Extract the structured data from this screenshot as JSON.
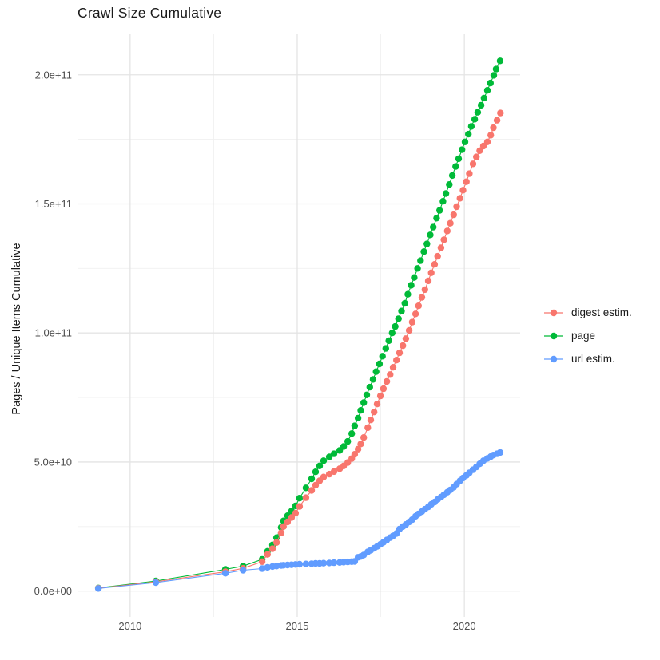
{
  "title": "Crawl Size Cumulative",
  "axes": {
    "x": {
      "tick_labels": [
        "2010",
        "2015",
        "2020"
      ],
      "tick_values": [
        2010,
        2015,
        2020
      ],
      "minor_ticks": [
        2012.5,
        2017.5
      ],
      "range": [
        2008.45,
        2021.67
      ]
    },
    "y": {
      "title": "Pages / Unique Items Cumulative",
      "tick_labels": [
        "0.0e+00",
        "5.0e+10",
        "1.0e+11",
        "1.5e+11",
        "2.0e+11"
      ],
      "tick_values": [
        0,
        50000000000.0,
        100000000000.0,
        150000000000.0,
        200000000000.0
      ],
      "minor_ticks": [
        25000000000.0,
        75000000000.0,
        125000000000.0,
        175000000000.0
      ],
      "range": [
        -10000000000.0,
        216000000000.0
      ]
    }
  },
  "legend": {
    "position": "right",
    "items": [
      {
        "label": "digest estim.",
        "color": "#F8766D"
      },
      {
        "label": "page",
        "color": "#00BA38"
      },
      {
        "label": "url estim.",
        "color": "#619CFF"
      }
    ]
  },
  "style": {
    "grid_major_color": "#e4e4e4",
    "grid_minor_color": "#f0f0f0",
    "tick_label_color": "#4d4d4d",
    "text_color": "#1a1a1a",
    "background": "#ffffff"
  },
  "chart_data": {
    "type": "line",
    "title": "Crawl Size Cumulative",
    "xlabel": "",
    "ylabel": "Pages / Unique Items Cumulative",
    "xlim": [
      2008.45,
      2021.67
    ],
    "ylim": [
      -10000000000.0,
      216000000000.0
    ],
    "grid": true,
    "legend_position": "right",
    "marker": "point",
    "draw_order": [
      1,
      0,
      2
    ],
    "series": [
      {
        "name": "digest estim.",
        "color": "#F8766D",
        "points": [
          [
            2009.05,
            1100000000.0
          ],
          [
            2010.77,
            3600000000.0
          ],
          [
            2012.85,
            7500000000.0
          ],
          [
            2013.38,
            8800000000.0
          ],
          [
            2013.95,
            11400000000.0
          ],
          [
            2014.11,
            14200000000.0
          ],
          [
            2014.26,
            16400000000.0
          ],
          [
            2014.38,
            18800000000.0
          ],
          [
            2014.52,
            22600000000.0
          ],
          [
            2014.59,
            25000000000.0
          ],
          [
            2014.71,
            26800000000.0
          ],
          [
            2014.83,
            28500000000.0
          ],
          [
            2014.95,
            30200000000.0
          ],
          [
            2015.07,
            32800000000.0
          ],
          [
            2015.26,
            36200000000.0
          ],
          [
            2015.43,
            39000000000.0
          ],
          [
            2015.55,
            41000000000.0
          ],
          [
            2015.67,
            42700000000.0
          ],
          [
            2015.79,
            44200000000.0
          ],
          [
            2015.96,
            45300000000.0
          ],
          [
            2016.1,
            46300000000.0
          ],
          [
            2016.27,
            47400000000.0
          ],
          [
            2016.39,
            48500000000.0
          ],
          [
            2016.51,
            49800000000.0
          ],
          [
            2016.63,
            51300000000.0
          ],
          [
            2016.72,
            53000000000.0
          ],
          [
            2016.82,
            55000000000.0
          ],
          [
            2016.9,
            57000000000.0
          ],
          [
            2016.99,
            59500000000.0
          ],
          [
            2017.11,
            63300000000.0
          ],
          [
            2017.2,
            66300000000.0
          ],
          [
            2017.3,
            69400000000.0
          ],
          [
            2017.39,
            72500000000.0
          ],
          [
            2017.49,
            75600000000.0
          ],
          [
            2017.58,
            78400000000.0
          ],
          [
            2017.68,
            81200000000.0
          ],
          [
            2017.78,
            83900000000.0
          ],
          [
            2017.87,
            86700000000.0
          ],
          [
            2017.97,
            89500000000.0
          ],
          [
            2018.06,
            92300000000.0
          ],
          [
            2018.16,
            95100000000.0
          ],
          [
            2018.25,
            97800000000.0
          ],
          [
            2018.35,
            101000000000.0
          ],
          [
            2018.44,
            104200000000.0
          ],
          [
            2018.54,
            107400000000.0
          ],
          [
            2018.63,
            110500000000.0
          ],
          [
            2018.73,
            113800000000.0
          ],
          [
            2018.82,
            116800000000.0
          ],
          [
            2018.92,
            120200000000.0
          ],
          [
            2019.01,
            123300000000.0
          ],
          [
            2019.11,
            126600000000.0
          ],
          [
            2019.2,
            129700000000.0
          ],
          [
            2019.3,
            133000000000.0
          ],
          [
            2019.39,
            136100000000.0
          ],
          [
            2019.49,
            139500000000.0
          ],
          [
            2019.58,
            142500000000.0
          ],
          [
            2019.68,
            145800000000.0
          ],
          [
            2019.77,
            148900000000.0
          ],
          [
            2019.87,
            152200000000.0
          ],
          [
            2019.96,
            155300000000.0
          ],
          [
            2020.06,
            158600000000.0
          ],
          [
            2020.15,
            161700000000.0
          ],
          [
            2020.26,
            165500000000.0
          ],
          [
            2020.36,
            168200000000.0
          ],
          [
            2020.46,
            170600000000.0
          ],
          [
            2020.57,
            172400000000.0
          ],
          [
            2020.69,
            174000000000.0
          ],
          [
            2020.79,
            176600000000.0
          ],
          [
            2020.87,
            179500000000.0
          ],
          [
            2020.98,
            182400000000.0
          ],
          [
            2021.08,
            185200000000.0
          ]
        ]
      },
      {
        "name": "page",
        "color": "#00BA38",
        "points": [
          [
            2009.05,
            1200000000.0
          ],
          [
            2010.77,
            3900000000.0
          ],
          [
            2012.85,
            8400000000.0
          ],
          [
            2013.38,
            9700000000.0
          ],
          [
            2013.95,
            12300000000.0
          ],
          [
            2014.11,
            15400000000.0
          ],
          [
            2014.26,
            17900000000.0
          ],
          [
            2014.38,
            20700000000.0
          ],
          [
            2014.52,
            24700000000.0
          ],
          [
            2014.59,
            27200000000.0
          ],
          [
            2014.71,
            29200000000.0
          ],
          [
            2014.83,
            31000000000.0
          ],
          [
            2014.95,
            33000000000.0
          ],
          [
            2015.07,
            36000000000.0
          ],
          [
            2015.26,
            40000000000.0
          ],
          [
            2015.43,
            43500000000.0
          ],
          [
            2015.55,
            46200000000.0
          ],
          [
            2015.67,
            48500000000.0
          ],
          [
            2015.79,
            50500000000.0
          ],
          [
            2015.96,
            52000000000.0
          ],
          [
            2016.1,
            53200000000.0
          ],
          [
            2016.27,
            54500000000.0
          ],
          [
            2016.39,
            56000000000.0
          ],
          [
            2016.51,
            58000000000.0
          ],
          [
            2016.63,
            61000000000.0
          ],
          [
            2016.72,
            64000000000.0
          ],
          [
            2016.82,
            67000000000.0
          ],
          [
            2016.9,
            70000000000.0
          ],
          [
            2016.99,
            73000000000.0
          ],
          [
            2017.08,
            76000000000.0
          ],
          [
            2017.17,
            79000000000.0
          ],
          [
            2017.27,
            82000000000.0
          ],
          [
            2017.36,
            85000000000.0
          ],
          [
            2017.46,
            88000000000.0
          ],
          [
            2017.55,
            91000000000.0
          ],
          [
            2017.65,
            94000000000.0
          ],
          [
            2017.74,
            97000000000.0
          ],
          [
            2017.84,
            100000000000.0
          ],
          [
            2017.93,
            102500000000.0
          ],
          [
            2018.03,
            105500000000.0
          ],
          [
            2018.12,
            108500000000.0
          ],
          [
            2018.22,
            111500000000.0
          ],
          [
            2018.31,
            115000000000.0
          ],
          [
            2018.41,
            118500000000.0
          ],
          [
            2018.5,
            121500000000.0
          ],
          [
            2018.6,
            125000000000.0
          ],
          [
            2018.69,
            128000000000.0
          ],
          [
            2018.79,
            131500000000.0
          ],
          [
            2018.88,
            134500000000.0
          ],
          [
            2018.98,
            138000000000.0
          ],
          [
            2019.07,
            141000000000.0
          ],
          [
            2019.17,
            144500000000.0
          ],
          [
            2019.26,
            147500000000.0
          ],
          [
            2019.36,
            151000000000.0
          ],
          [
            2019.45,
            154000000000.0
          ],
          [
            2019.55,
            157500000000.0
          ],
          [
            2019.64,
            161000000000.0
          ],
          [
            2019.74,
            164500000000.0
          ],
          [
            2019.83,
            167500000000.0
          ],
          [
            2019.93,
            171000000000.0
          ],
          [
            2020.02,
            174000000000.0
          ],
          [
            2020.12,
            177000000000.0
          ],
          [
            2020.21,
            180000000000.0
          ],
          [
            2020.31,
            182800000000.0
          ],
          [
            2020.4,
            185500000000.0
          ],
          [
            2020.5,
            188200000000.0
          ],
          [
            2020.59,
            191000000000.0
          ],
          [
            2020.69,
            194000000000.0
          ],
          [
            2020.78,
            196800000000.0
          ],
          [
            2020.88,
            199800000000.0
          ],
          [
            2020.95,
            202200000000.0
          ],
          [
            2021.07,
            205400000000.0
          ]
        ]
      },
      {
        "name": "url estim.",
        "color": "#619CFF",
        "points": [
          [
            2009.05,
            1000000000.0
          ],
          [
            2010.77,
            3300000000.0
          ],
          [
            2012.85,
            6900000000.0
          ],
          [
            2013.38,
            8100000000.0
          ],
          [
            2013.95,
            8700000000.0
          ],
          [
            2014.11,
            9200000000.0
          ],
          [
            2014.26,
            9500000000.0
          ],
          [
            2014.38,
            9700000000.0
          ],
          [
            2014.52,
            9900000000.0
          ],
          [
            2014.59,
            10000000000.0
          ],
          [
            2014.71,
            10100000000.0
          ],
          [
            2014.83,
            10200000000.0
          ],
          [
            2014.95,
            10300000000.0
          ],
          [
            2015.07,
            10400000000.0
          ],
          [
            2015.26,
            10500000000.0
          ],
          [
            2015.43,
            10600000000.0
          ],
          [
            2015.55,
            10700000000.0
          ],
          [
            2015.67,
            10700000000.0
          ],
          [
            2015.79,
            10800000000.0
          ],
          [
            2015.96,
            10900000000.0
          ],
          [
            2016.1,
            11000000000.0
          ],
          [
            2016.27,
            11100000000.0
          ],
          [
            2016.39,
            11200000000.0
          ],
          [
            2016.51,
            11300000000.0
          ],
          [
            2016.63,
            11400000000.0
          ],
          [
            2016.72,
            11500000000.0
          ],
          [
            2016.82,
            13100000000.0
          ],
          [
            2016.9,
            13400000000.0
          ],
          [
            2016.99,
            14000000000.0
          ],
          [
            2017.11,
            15200000000.0
          ],
          [
            2017.2,
            15800000000.0
          ],
          [
            2017.3,
            16600000000.0
          ],
          [
            2017.39,
            17300000000.0
          ],
          [
            2017.49,
            18100000000.0
          ],
          [
            2017.58,
            18900000000.0
          ],
          [
            2017.68,
            19800000000.0
          ],
          [
            2017.78,
            20700000000.0
          ],
          [
            2017.87,
            21400000000.0
          ],
          [
            2017.97,
            22300000000.0
          ],
          [
            2018.06,
            24000000000.0
          ],
          [
            2018.16,
            25000000000.0
          ],
          [
            2018.25,
            25800000000.0
          ],
          [
            2018.35,
            26800000000.0
          ],
          [
            2018.44,
            27700000000.0
          ],
          [
            2018.54,
            29000000000.0
          ],
          [
            2018.63,
            29900000000.0
          ],
          [
            2018.73,
            30800000000.0
          ],
          [
            2018.82,
            31700000000.0
          ],
          [
            2018.92,
            32600000000.0
          ],
          [
            2019.01,
            33600000000.0
          ],
          [
            2019.11,
            34500000000.0
          ],
          [
            2019.2,
            35500000000.0
          ],
          [
            2019.3,
            36400000000.0
          ],
          [
            2019.39,
            37300000000.0
          ],
          [
            2019.49,
            38300000000.0
          ],
          [
            2019.58,
            39200000000.0
          ],
          [
            2019.68,
            40200000000.0
          ],
          [
            2019.77,
            41400000000.0
          ],
          [
            2019.87,
            42700000000.0
          ],
          [
            2019.96,
            43800000000.0
          ],
          [
            2020.06,
            44800000000.0
          ],
          [
            2020.15,
            45800000000.0
          ],
          [
            2020.26,
            47000000000.0
          ],
          [
            2020.36,
            48100000000.0
          ],
          [
            2020.46,
            49300000000.0
          ],
          [
            2020.57,
            50500000000.0
          ],
          [
            2020.69,
            51400000000.0
          ],
          [
            2020.79,
            52100000000.0
          ],
          [
            2020.87,
            52700000000.0
          ],
          [
            2020.98,
            53200000000.0
          ],
          [
            2021.07,
            53700000000.0
          ]
        ]
      }
    ]
  }
}
